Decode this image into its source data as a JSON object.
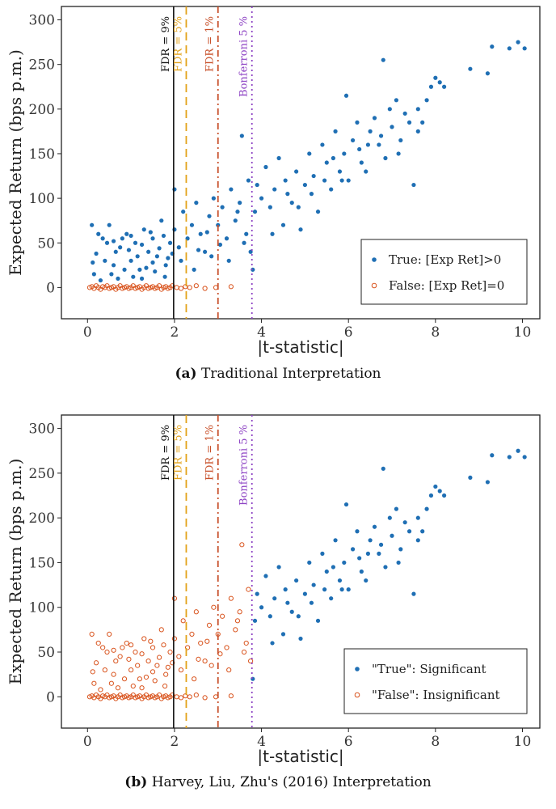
{
  "figure": {
    "panels": [
      {
        "caption_tag": "(a)",
        "caption_text": "Traditional Interpretation",
        "legend": [
          {
            "label": "True: [Exp Ret]>0",
            "style": "filled",
            "color": "#1f6fb4"
          },
          {
            "label": "False: [Exp Ret]=0",
            "style": "hollow",
            "color": "#d9541e"
          }
        ],
        "coloring": "by_truth"
      },
      {
        "caption_tag": "(b)",
        "caption_text": "Harvey, Liu, Zhu's (2016) Interpretation",
        "legend": [
          {
            "label": "\"True\": Significant",
            "style": "filled",
            "color": "#1f6fb4"
          },
          {
            "label": "\"False\": Insignificant",
            "style": "hollow",
            "color": "#d9541e"
          }
        ],
        "coloring": "by_significance",
        "significance_cutoff": 3.78
      }
    ]
  },
  "chart_data": {
    "type": "scatter",
    "xlabel": "|t-statistic|",
    "ylabel": "Expected Return (bps p.m.)",
    "xlim": [
      -0.6,
      10.4
    ],
    "ylim": [
      -35,
      315
    ],
    "x_ticks": [
      0,
      2,
      4,
      6,
      8,
      10
    ],
    "y_ticks": [
      0,
      50,
      100,
      150,
      200,
      250,
      300
    ],
    "grid": false,
    "legend_position": "bottom-right",
    "thresholds": [
      {
        "label": "FDR = 9%",
        "x": 1.98,
        "style": "solid",
        "color": "#111111"
      },
      {
        "label": "FDR = 5%",
        "x": 2.27,
        "style": "dashed",
        "color": "#e3a21a"
      },
      {
        "label": "FDR = 1%",
        "x": 3.0,
        "style": "dashdot",
        "color": "#c8502a"
      },
      {
        "label": "Bonferroni 5 %",
        "x": 3.78,
        "style": "dotted",
        "color": "#8e44c4"
      }
    ],
    "series": [
      {
        "name": "True: [Exp Ret]>0",
        "marker": "filled",
        "color": "#1f6fb4",
        "points": [
          [
            0.2,
            38
          ],
          [
            0.35,
            55
          ],
          [
            0.5,
            70
          ],
          [
            0.6,
            25
          ],
          [
            0.75,
            45
          ],
          [
            0.9,
            60
          ],
          [
            1.0,
            30
          ],
          [
            1.1,
            50
          ],
          [
            1.2,
            20
          ],
          [
            1.3,
            65
          ],
          [
            1.4,
            40
          ],
          [
            1.5,
            55
          ],
          [
            1.6,
            35
          ],
          [
            1.7,
            75
          ],
          [
            1.8,
            25
          ],
          [
            1.9,
            50
          ],
          [
            2.0,
            110
          ],
          [
            2.0,
            65
          ],
          [
            2.1,
            45
          ],
          [
            2.2,
            85
          ],
          [
            2.3,
            55
          ],
          [
            2.4,
            70
          ],
          [
            2.5,
            95
          ],
          [
            2.6,
            60
          ],
          [
            2.7,
            40
          ],
          [
            2.8,
            80
          ],
          [
            2.9,
            100
          ],
          [
            3.0,
            70
          ],
          [
            3.1,
            90
          ],
          [
            3.2,
            55
          ],
          [
            3.3,
            110
          ],
          [
            3.4,
            75
          ],
          [
            3.5,
            95
          ],
          [
            3.55,
            170
          ],
          [
            3.6,
            50
          ],
          [
            3.7,
            120
          ],
          [
            3.75,
            40
          ],
          [
            3.85,
            85
          ],
          [
            3.9,
            115
          ],
          [
            4.0,
            100
          ],
          [
            4.1,
            135
          ],
          [
            4.2,
            90
          ],
          [
            4.3,
            110
          ],
          [
            4.4,
            145
          ],
          [
            4.5,
            70
          ],
          [
            4.6,
            105
          ],
          [
            4.7,
            95
          ],
          [
            4.8,
            130
          ],
          [
            4.9,
            65
          ],
          [
            5.0,
            115
          ],
          [
            5.1,
            150
          ],
          [
            5.2,
            125
          ],
          [
            5.3,
            85
          ],
          [
            5.4,
            160
          ],
          [
            5.5,
            140
          ],
          [
            5.6,
            110
          ],
          [
            5.7,
            175
          ],
          [
            5.8,
            130
          ],
          [
            5.9,
            150
          ],
          [
            5.95,
            215
          ],
          [
            6.0,
            120
          ],
          [
            6.1,
            165
          ],
          [
            6.2,
            185
          ],
          [
            6.3,
            140
          ],
          [
            6.4,
            130
          ],
          [
            6.5,
            175
          ],
          [
            6.6,
            190
          ],
          [
            6.7,
            160
          ],
          [
            6.8,
            255
          ],
          [
            6.85,
            145
          ],
          [
            6.95,
            200
          ],
          [
            7.0,
            180
          ],
          [
            7.1,
            210
          ],
          [
            7.2,
            165
          ],
          [
            7.3,
            195
          ],
          [
            7.4,
            185
          ],
          [
            7.5,
            115
          ],
          [
            7.6,
            200
          ],
          [
            7.7,
            185
          ],
          [
            7.8,
            210
          ],
          [
            7.9,
            225
          ],
          [
            8.0,
            235
          ],
          [
            8.1,
            230
          ],
          [
            8.2,
            225
          ],
          [
            8.8,
            245
          ],
          [
            9.2,
            240
          ],
          [
            9.3,
            270
          ],
          [
            9.7,
            268
          ],
          [
            9.9,
            275
          ],
          [
            10.05,
            268
          ],
          [
            0.1,
            70
          ],
          [
            0.15,
            15
          ],
          [
            0.25,
            60
          ],
          [
            0.4,
            30
          ],
          [
            0.45,
            50
          ],
          [
            0.55,
            15
          ],
          [
            0.65,
            40
          ],
          [
            0.7,
            10
          ],
          [
            0.8,
            55
          ],
          [
            0.85,
            20
          ],
          [
            0.95,
            42
          ],
          [
            1.05,
            12
          ],
          [
            1.15,
            35
          ],
          [
            1.25,
            48
          ],
          [
            1.35,
            22
          ],
          [
            1.45,
            62
          ],
          [
            1.55,
            18
          ],
          [
            1.65,
            44
          ],
          [
            1.75,
            58
          ],
          [
            1.85,
            33
          ],
          [
            0.12,
            28
          ],
          [
            0.3,
            8
          ],
          [
            0.6,
            52
          ],
          [
            1.0,
            58
          ],
          [
            1.25,
            10
          ],
          [
            1.5,
            28
          ],
          [
            1.78,
            12
          ],
          [
            1.95,
            38
          ],
          [
            2.15,
            30
          ],
          [
            2.45,
            20
          ],
          [
            2.55,
            42
          ],
          [
            2.75,
            62
          ],
          [
            2.85,
            35
          ],
          [
            3.05,
            48
          ],
          [
            3.25,
            30
          ],
          [
            3.45,
            85
          ],
          [
            3.65,
            60
          ],
          [
            3.8,
            20
          ],
          [
            4.25,
            60
          ],
          [
            4.55,
            120
          ],
          [
            4.85,
            90
          ],
          [
            5.15,
            105
          ],
          [
            5.45,
            120
          ],
          [
            5.65,
            145
          ],
          [
            5.85,
            120
          ],
          [
            6.25,
            155
          ],
          [
            6.45,
            160
          ],
          [
            6.75,
            170
          ],
          [
            7.15,
            150
          ],
          [
            7.6,
            175
          ]
        ]
      },
      {
        "name": "False: [Exp Ret]=0",
        "marker": "hollow",
        "color": "#d9541e",
        "points": [
          [
            0.05,
            0
          ],
          [
            0.1,
            1
          ],
          [
            0.15,
            -1
          ],
          [
            0.2,
            2
          ],
          [
            0.25,
            0
          ],
          [
            0.3,
            -2
          ],
          [
            0.35,
            1
          ],
          [
            0.4,
            0
          ],
          [
            0.45,
            2
          ],
          [
            0.5,
            -1
          ],
          [
            0.55,
            0
          ],
          [
            0.6,
            1
          ],
          [
            0.65,
            -2
          ],
          [
            0.7,
            0
          ],
          [
            0.75,
            2
          ],
          [
            0.8,
            -1
          ],
          [
            0.85,
            0
          ],
          [
            0.9,
            1
          ],
          [
            0.95,
            -1
          ],
          [
            1.0,
            0
          ],
          [
            1.05,
            2
          ],
          [
            1.1,
            -1
          ],
          [
            1.15,
            0
          ],
          [
            1.2,
            1
          ],
          [
            1.25,
            -2
          ],
          [
            1.3,
            0
          ],
          [
            1.35,
            2
          ],
          [
            1.4,
            -1
          ],
          [
            1.45,
            0
          ],
          [
            1.5,
            1
          ],
          [
            1.55,
            -1
          ],
          [
            1.6,
            0
          ],
          [
            1.65,
            2
          ],
          [
            1.7,
            -2
          ],
          [
            1.75,
            0
          ],
          [
            1.8,
            1
          ],
          [
            1.85,
            -1
          ],
          [
            1.9,
            0
          ],
          [
            1.95,
            2
          ],
          [
            2.05,
            0
          ],
          [
            2.15,
            -1
          ],
          [
            2.25,
            1
          ],
          [
            2.35,
            0
          ],
          [
            2.5,
            2
          ],
          [
            2.7,
            -1
          ],
          [
            2.95,
            0
          ],
          [
            3.3,
            1
          ]
        ]
      }
    ],
    "counts_note": ""
  }
}
